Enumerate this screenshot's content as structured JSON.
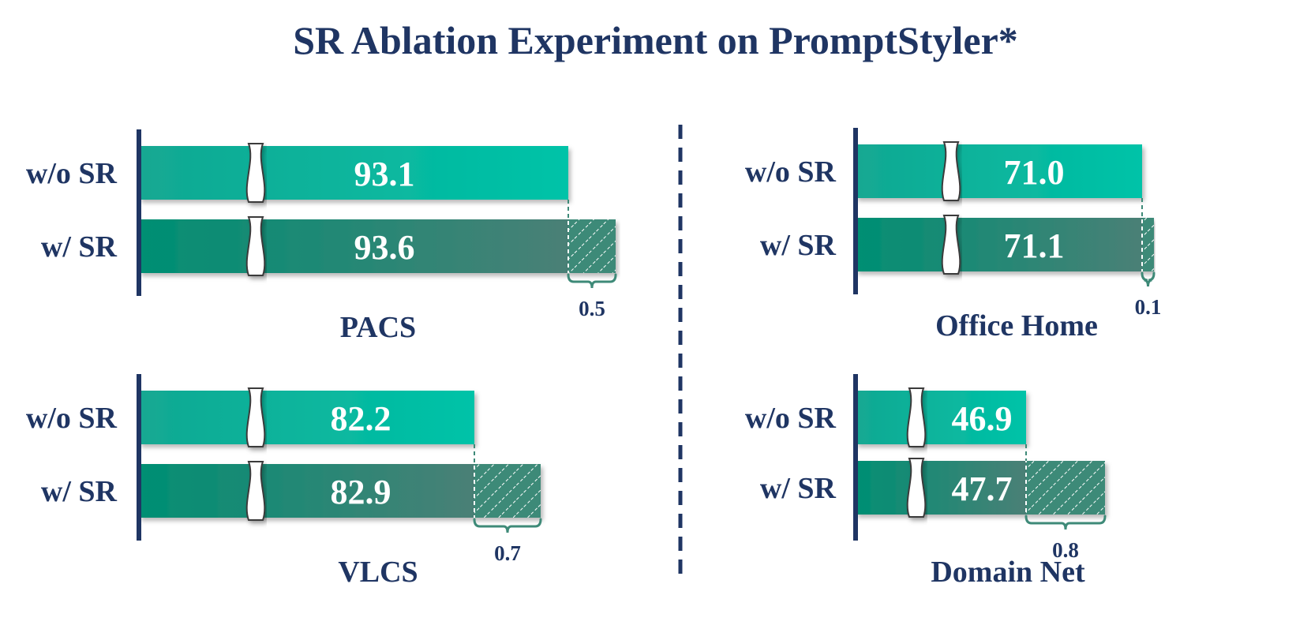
{
  "title": "SR Ablation Experiment on PromptStyler*",
  "colors": {
    "title": "#1f3563",
    "wo_sr_bar_left": "#13a892",
    "wo_sr_bar_right": "#00c3a8",
    "w_sr_bar_left": "#008f73",
    "w_sr_bar_right": "#4a8076",
    "gain_fill": "#3e8a78",
    "axis": "#1f3563",
    "value_text": "#ffffff"
  },
  "icons": {
    "axis_break": "axis-break-icon",
    "gain_brace": "curly-brace-icon"
  },
  "chart_data": [
    {
      "type": "bar",
      "orientation": "horizontal",
      "axis_break": true,
      "xlabel": "PACS",
      "categories": [
        "w/o SR",
        "w/ SR"
      ],
      "values": [
        93.1,
        93.6
      ],
      "value_labels": [
        "93.1",
        "93.6"
      ],
      "gain": 0.5,
      "gain_label": "0.5"
    },
    {
      "type": "bar",
      "orientation": "horizontal",
      "axis_break": true,
      "xlabel": "Office Home",
      "categories": [
        "w/o SR",
        "w/ SR"
      ],
      "values": [
        71.0,
        71.1
      ],
      "value_labels": [
        "71.0",
        "71.1"
      ],
      "gain": 0.1,
      "gain_label": "0.1"
    },
    {
      "type": "bar",
      "orientation": "horizontal",
      "axis_break": true,
      "xlabel": "VLCS",
      "categories": [
        "w/o SR",
        "w/ SR"
      ],
      "values": [
        82.2,
        82.9
      ],
      "value_labels": [
        "82.2",
        "82.9"
      ],
      "gain": 0.7,
      "gain_label": "0.7"
    },
    {
      "type": "bar",
      "orientation": "horizontal",
      "axis_break": true,
      "xlabel": "Domain Net",
      "categories": [
        "w/o SR",
        "w/ SR"
      ],
      "values": [
        46.9,
        47.7
      ],
      "value_labels": [
        "46.9",
        "47.7"
      ],
      "gain": 0.8,
      "gain_label": "0.8"
    }
  ]
}
